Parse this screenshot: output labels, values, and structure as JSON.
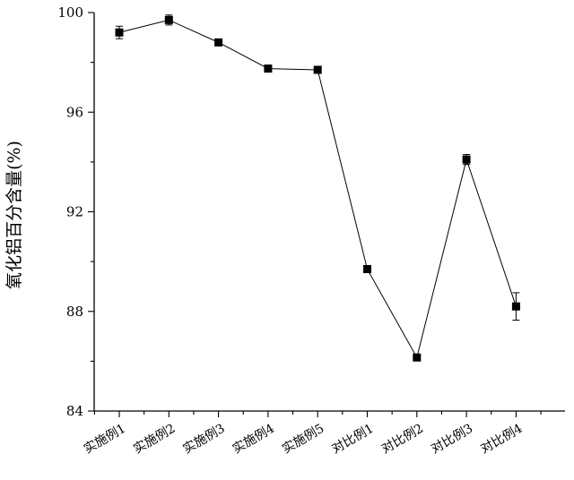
{
  "chart_data": {
    "type": "line",
    "title": "",
    "xlabel": "",
    "ylabel": "氧化铝百分含量(%)",
    "categories": [
      "实施例1",
      "实施例2",
      "实施例3",
      "实施例4",
      "实施例5",
      "对比例1",
      "对比例2",
      "对比例3",
      "对比例4"
    ],
    "series": [
      {
        "values": [
          99.2,
          99.7,
          98.8,
          97.75,
          97.7,
          89.7,
          86.15,
          94.1,
          88.2
        ],
        "errors": [
          0.25,
          0.2,
          0.12,
          0.08,
          0.1,
          0.08,
          0.06,
          0.2,
          0.55
        ]
      }
    ],
    "ylim": [
      84,
      100
    ],
    "yticks": [
      "84",
      "88",
      "92",
      "96",
      "100"
    ],
    "grid": false,
    "legend": "none",
    "marker": "square",
    "color": "#000000"
  }
}
